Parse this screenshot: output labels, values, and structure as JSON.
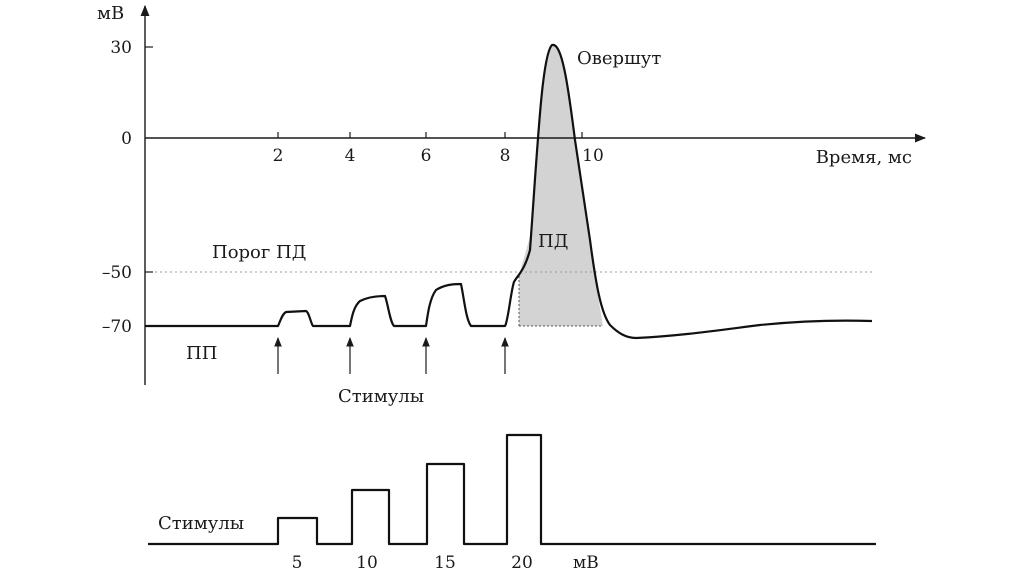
{
  "upper_plot": {
    "y_unit": "мВ",
    "x_label": "Время, мс",
    "y_ticks": [
      "30",
      "0",
      "–50",
      "–70"
    ],
    "x_ticks": [
      "2",
      "4",
      "6",
      "8",
      "10"
    ],
    "threshold_label": "Порог ПД",
    "resting_label": "ПП",
    "overshoot_label": "Овершут",
    "ap_label": "ПД",
    "stimuli_label": "Стимулы",
    "threshold_mv": -50,
    "resting_mv": -70,
    "peak_mv": 30
  },
  "lower_plot": {
    "label": "Стимулы",
    "unit": "мВ",
    "pulse_labels": [
      "5",
      "10",
      "15",
      "20"
    ]
  },
  "colors": {
    "ap_fill": "#d3d3d3",
    "line": "#111111",
    "threshold_line": "#999999"
  }
}
